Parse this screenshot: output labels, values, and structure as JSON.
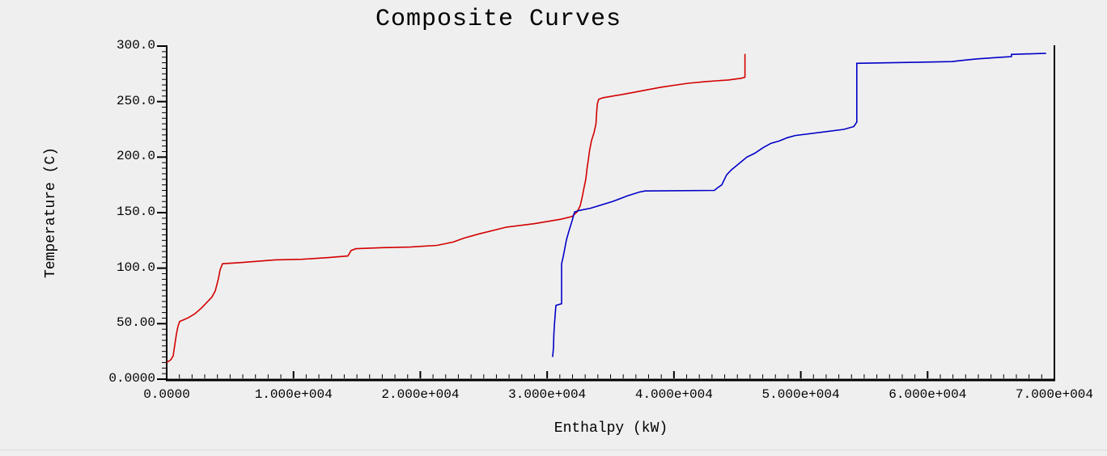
{
  "page": {
    "background_color": "#efefef",
    "text_color": "#000000"
  },
  "chart_data": {
    "type": "line",
    "title": "Composite Curves",
    "xlabel": "Enthalpy (kW)",
    "ylabel": "Temperature (C)",
    "xlim": [
      0,
      70000
    ],
    "ylim": [
      0,
      300
    ],
    "grid": false,
    "legend": "none",
    "axis_color": "#000000",
    "x_ticks": {
      "values": [
        0,
        10000,
        20000,
        30000,
        40000,
        50000,
        60000,
        70000
      ],
      "labels": [
        "0.0000",
        "1.000e+004",
        "2.000e+004",
        "3.000e+004",
        "4.000e+004",
        "5.000e+004",
        "6.000e+004",
        "7.000e+004"
      ]
    },
    "y_ticks": {
      "values": [
        0,
        50,
        100,
        150,
        200,
        250,
        300
      ],
      "labels": [
        "0.0000",
        "50.00",
        "100.0",
        "150.0",
        "200.0",
        "250.0",
        "300.0"
      ]
    },
    "x_minor_step": 1000,
    "y_minor_step": 5,
    "series": [
      {
        "name": "hot composite (red curve)",
        "color": "#d40000",
        "points": [
          [
            0,
            15
          ],
          [
            320,
            17.5
          ],
          [
            510,
            21
          ],
          [
            640,
            31
          ],
          [
            770,
            41
          ],
          [
            890,
            47.5
          ],
          [
            1020,
            52
          ],
          [
            1340,
            53.5
          ],
          [
            1720,
            55.5
          ],
          [
            2230,
            59
          ],
          [
            2740,
            64
          ],
          [
            3190,
            69.5
          ],
          [
            3570,
            74
          ],
          [
            3830,
            79.5
          ],
          [
            4080,
            90.5
          ],
          [
            4210,
            98.5
          ],
          [
            4400,
            104
          ],
          [
            5800,
            105
          ],
          [
            8550,
            107.5
          ],
          [
            10650,
            108
          ],
          [
            12760,
            109.5
          ],
          [
            14290,
            111
          ],
          [
            14550,
            116
          ],
          [
            14930,
            117.5
          ],
          [
            17040,
            118.5
          ],
          [
            19140,
            119
          ],
          [
            21310,
            120.5
          ],
          [
            22590,
            123.5
          ],
          [
            23420,
            127
          ],
          [
            24500,
            130.5
          ],
          [
            26800,
            137
          ],
          [
            28970,
            140
          ],
          [
            31070,
            144
          ],
          [
            31960,
            146.5
          ],
          [
            32350,
            150.5
          ],
          [
            32600,
            156
          ],
          [
            32750,
            163
          ],
          [
            32900,
            172
          ],
          [
            33050,
            180
          ],
          [
            33150,
            190
          ],
          [
            33250,
            198
          ],
          [
            33350,
            206
          ],
          [
            33500,
            215
          ],
          [
            33700,
            222
          ],
          [
            33850,
            230
          ],
          [
            33900,
            240
          ],
          [
            33960,
            248
          ],
          [
            34060,
            252
          ],
          [
            34400,
            253.5
          ],
          [
            36200,
            257
          ],
          [
            39000,
            263
          ],
          [
            41100,
            266.5
          ],
          [
            42500,
            268
          ],
          [
            44300,
            269.5
          ],
          [
            45300,
            271
          ],
          [
            45600,
            272
          ],
          [
            45600,
            293
          ]
        ]
      },
      {
        "name": "cold composite (blue curve)",
        "color": "#0000c8",
        "points": [
          [
            30430,
            20
          ],
          [
            30500,
            28.5
          ],
          [
            30530,
            39.5
          ],
          [
            30560,
            46.5
          ],
          [
            30630,
            57.5
          ],
          [
            30690,
            66.5
          ],
          [
            31140,
            68
          ],
          [
            31140,
            104
          ],
          [
            31260,
            110
          ],
          [
            31390,
            117.5
          ],
          [
            31520,
            125.5
          ],
          [
            31710,
            133
          ],
          [
            31960,
            142.5
          ],
          [
            32160,
            150.5
          ],
          [
            32540,
            152
          ],
          [
            33430,
            154
          ],
          [
            35150,
            160
          ],
          [
            36300,
            165
          ],
          [
            37260,
            168.5
          ],
          [
            37710,
            169.5
          ],
          [
            43190,
            170
          ],
          [
            43450,
            172.5
          ],
          [
            43770,
            175
          ],
          [
            44150,
            184
          ],
          [
            44530,
            188.5
          ],
          [
            45110,
            194
          ],
          [
            45750,
            200
          ],
          [
            46380,
            203.5
          ],
          [
            47020,
            208.5
          ],
          [
            47660,
            212.5
          ],
          [
            48300,
            214.5
          ],
          [
            48940,
            217.5
          ],
          [
            49570,
            219.5
          ],
          [
            53400,
            225
          ],
          [
            54170,
            227.5
          ],
          [
            54420,
            231.5
          ],
          [
            54420,
            284.5
          ],
          [
            61890,
            286
          ],
          [
            63040,
            287.5
          ],
          [
            63930,
            288.5
          ],
          [
            65910,
            290
          ],
          [
            66610,
            290.5
          ],
          [
            66610,
            292.5
          ],
          [
            69350,
            293.5
          ]
        ]
      }
    ]
  }
}
